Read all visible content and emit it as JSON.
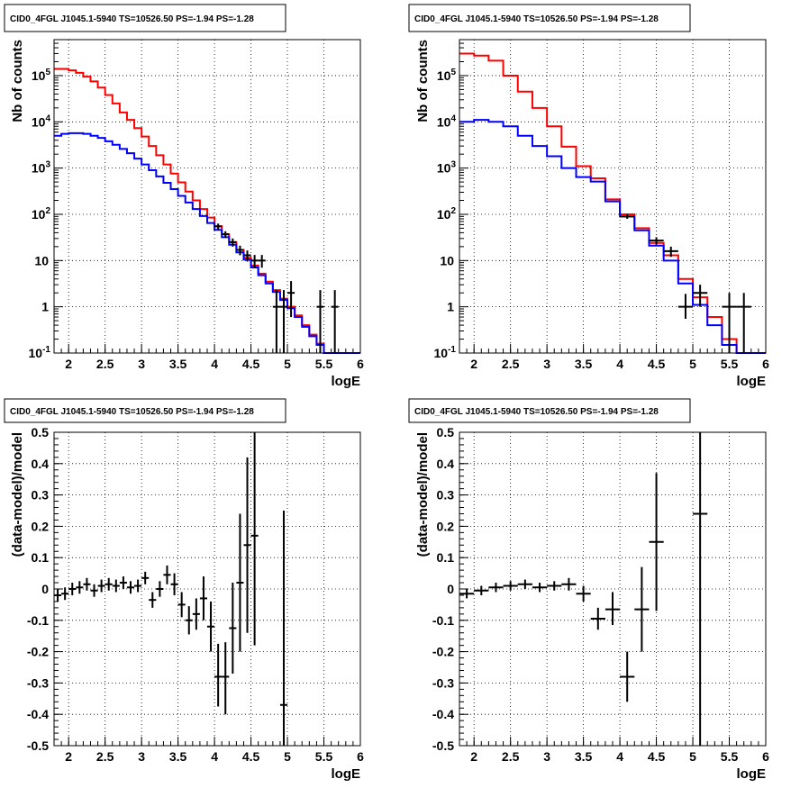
{
  "panel_title": "CID0_4FGL J1045.1-5940 TS=10526.50 PS=-1.94 PS=-1.28",
  "colors": {
    "model_total": "#ff0000",
    "model_other": "#0000ff",
    "data": "#000000"
  },
  "chart_data": [
    {
      "type": "line",
      "panel": "top-left",
      "title": "CID0_4FGL J1045.1-5940 TS=10526.50 PS=-1.94 PS=-1.28",
      "xlabel": "logE",
      "ylabel": "Nb of counts",
      "xlim": [
        1.8,
        6.0
      ],
      "ylim": [
        0.1,
        600000
      ],
      "yscale": "log",
      "grid": true,
      "x_ticks": [
        "2",
        "2.5",
        "3",
        "3.5",
        "4",
        "4.5",
        "5",
        "5.5",
        "6"
      ],
      "y_ticks": [
        "10^-1",
        "1",
        "10",
        "10^2",
        "10^3",
        "10^4",
        "10^5"
      ],
      "bin_width": 0.1,
      "bin_starts": [
        1.8,
        1.9,
        2.0,
        2.1,
        2.2,
        2.3,
        2.4,
        2.5,
        2.6,
        2.7,
        2.8,
        2.9,
        3.0,
        3.1,
        3.2,
        3.3,
        3.4,
        3.5,
        3.6,
        3.7,
        3.8,
        3.9,
        4.0,
        4.1,
        4.2,
        4.3,
        4.4,
        4.5,
        4.6,
        4.7,
        4.8,
        4.9,
        5.0,
        5.1,
        5.2,
        5.3,
        5.4,
        5.5,
        5.6,
        5.7,
        5.8,
        5.9
      ],
      "series": [
        {
          "name": "",
          "color": "#ff0000",
          "values": [
            140000,
            140000,
            130000,
            115000,
            95000,
            75000,
            55000,
            38000,
            25000,
            16000,
            11000,
            7300,
            4800,
            3000,
            1900,
            1200,
            760,
            490,
            310,
            200,
            130,
            85,
            55,
            37,
            25,
            17,
            11.5,
            7.8,
            5.2,
            3.5,
            2.3,
            1.5,
            1.0,
            0.65,
            0.4,
            0.25,
            0.16,
            0.1,
            0.1,
            0.1,
            0.1,
            0.1
          ]
        },
        {
          "name": "",
          "color": "#0000ff",
          "values": [
            5000,
            5500,
            5700,
            5700,
            5500,
            5000,
            4500,
            3800,
            3200,
            2600,
            2100,
            1600,
            1200,
            900,
            660,
            480,
            350,
            250,
            180,
            130,
            92,
            65,
            46,
            32,
            22,
            15,
            10.5,
            7.1,
            4.8,
            3.2,
            2.1,
            1.4,
            0.93,
            0.6,
            0.37,
            0.23,
            0.15,
            0.1,
            0.1,
            0.1,
            0.1,
            0.1
          ]
        }
      ],
      "points": [
        {
          "x": 4.05,
          "y": 55,
          "xerr": 0.05,
          "ylo": 47,
          "yhi": 63
        },
        {
          "x": 4.15,
          "y": 37,
          "xerr": 0.05,
          "ylo": 31,
          "yhi": 43
        },
        {
          "x": 4.25,
          "y": 25,
          "xerr": 0.05,
          "ylo": 20,
          "yhi": 30
        },
        {
          "x": 4.35,
          "y": 17,
          "xerr": 0.05,
          "ylo": 13,
          "yhi": 21
        },
        {
          "x": 4.45,
          "y": 13,
          "xerr": 0.05,
          "ylo": 9.5,
          "yhi": 16.5
        },
        {
          "x": 4.55,
          "y": 10,
          "xerr": 0.05,
          "ylo": 7,
          "yhi": 13.2
        },
        {
          "x": 4.65,
          "y": 10,
          "xerr": 0.05,
          "ylo": 7,
          "yhi": 13.2
        },
        {
          "x": 4.85,
          "y": 1,
          "xerr": 0.05,
          "ylo": 0.1,
          "yhi": 2.3
        },
        {
          "x": 4.95,
          "y": 1,
          "xerr": 0.05,
          "ylo": 0.1,
          "yhi": 2.3
        },
        {
          "x": 5.05,
          "y": 2,
          "xerr": 0.05,
          "ylo": 0.6,
          "yhi": 3.6
        },
        {
          "x": 5.45,
          "y": 1,
          "xerr": 0.05,
          "ylo": 0.1,
          "yhi": 2.3
        },
        {
          "x": 5.65,
          "y": 1,
          "xerr": 0.05,
          "ylo": 0.1,
          "yhi": 2.3
        }
      ]
    },
    {
      "type": "line",
      "panel": "top-right",
      "title": "CID0_4FGL J1045.1-5940 TS=10526.50 PS=-1.94 PS=-1.28",
      "xlabel": "logE",
      "ylabel": "Nb of counts",
      "xlim": [
        1.8,
        6.0
      ],
      "ylim": [
        0.1,
        600000
      ],
      "yscale": "log",
      "grid": true,
      "x_ticks": [
        "2",
        "2.5",
        "3",
        "3.5",
        "4",
        "4.5",
        "5",
        "5.5",
        "6"
      ],
      "y_ticks": [
        "10^-1",
        "1",
        "10",
        "10^2",
        "10^3",
        "10^4",
        "10^5"
      ],
      "bin_width": 0.2,
      "bin_starts": [
        1.8,
        2.0,
        2.2,
        2.4,
        2.6,
        2.8,
        3.0,
        3.2,
        3.4,
        3.6,
        3.8,
        4.0,
        4.2,
        4.4,
        4.6,
        4.8,
        5.0,
        5.2,
        5.4,
        5.6,
        5.8
      ],
      "series": [
        {
          "name": "",
          "color": "#ff0000",
          "values": [
            300000,
            270000,
            210000,
            100000,
            45000,
            20000,
            8000,
            2900,
            1100,
            600,
            210,
            100,
            50,
            24,
            13,
            4,
            1.6,
            0.6,
            0.2,
            0.1,
            0.1
          ]
        },
        {
          "name": "",
          "color": "#0000ff",
          "values": [
            10000,
            11000,
            10000,
            8000,
            5000,
            3000,
            1800,
            1000,
            640,
            510,
            190,
            90,
            45,
            21,
            10,
            3.2,
            1.1,
            0.4,
            0.15,
            0.1,
            0.1
          ]
        }
      ],
      "points": [
        {
          "x": 4.1,
          "y": 90,
          "xerr": 0.1,
          "ylo": 80,
          "yhi": 100
        },
        {
          "x": 4.5,
          "y": 27,
          "xerr": 0.1,
          "ylo": 22,
          "yhi": 32
        },
        {
          "x": 4.7,
          "y": 16,
          "xerr": 0.1,
          "ylo": 12,
          "yhi": 20
        },
        {
          "x": 4.9,
          "y": 1,
          "xerr": 0.1,
          "ylo": 0.55,
          "yhi": 1.9
        },
        {
          "x": 5.1,
          "y": 2,
          "xerr": 0.1,
          "ylo": 1.0,
          "yhi": 3.0
        },
        {
          "x": 5.5,
          "y": 1,
          "xerr": 0.1,
          "ylo": 0.1,
          "yhi": 2.0
        },
        {
          "x": 5.7,
          "y": 1,
          "xerr": 0.1,
          "ylo": 0.1,
          "yhi": 2.0
        }
      ]
    },
    {
      "type": "scatter",
      "panel": "bottom-left",
      "title": "CID0_4FGL J1045.1-5940 TS=10526.50 PS=-1.94 PS=-1.28",
      "xlabel": "logE",
      "ylabel": "(data-model)/model",
      "xlim": [
        1.8,
        6.0
      ],
      "ylim": [
        -0.5,
        0.5
      ],
      "grid": true,
      "x_ticks": [
        "2",
        "2.5",
        "3",
        "3.5",
        "4",
        "4.5",
        "5",
        "5.5",
        "6"
      ],
      "y_ticks": [
        "-0.5",
        "-0.4",
        "-0.3",
        "-0.2",
        "-0.1",
        "0",
        "0.1",
        "0.2",
        "0.3",
        "0.4",
        "0.5"
      ],
      "points": [
        {
          "x": 1.85,
          "y": -0.02,
          "xerr": 0.05,
          "ylo": -0.04,
          "yhi": 0.0
        },
        {
          "x": 1.95,
          "y": -0.015,
          "xerr": 0.05,
          "ylo": -0.035,
          "yhi": 0.005
        },
        {
          "x": 2.05,
          "y": 0.0,
          "xerr": 0.05,
          "ylo": -0.02,
          "yhi": 0.02
        },
        {
          "x": 2.15,
          "y": 0.005,
          "xerr": 0.05,
          "ylo": -0.015,
          "yhi": 0.025
        },
        {
          "x": 2.25,
          "y": 0.015,
          "xerr": 0.05,
          "ylo": -0.005,
          "yhi": 0.035
        },
        {
          "x": 2.35,
          "y": -0.005,
          "xerr": 0.05,
          "ylo": -0.025,
          "yhi": 0.015
        },
        {
          "x": 2.45,
          "y": 0.01,
          "xerr": 0.05,
          "ylo": -0.01,
          "yhi": 0.03
        },
        {
          "x": 2.55,
          "y": 0.015,
          "xerr": 0.05,
          "ylo": -0.005,
          "yhi": 0.035
        },
        {
          "x": 2.65,
          "y": 0.01,
          "xerr": 0.05,
          "ylo": -0.01,
          "yhi": 0.03
        },
        {
          "x": 2.75,
          "y": 0.02,
          "xerr": 0.05,
          "ylo": 0.0,
          "yhi": 0.04
        },
        {
          "x": 2.85,
          "y": 0.005,
          "xerr": 0.05,
          "ylo": -0.015,
          "yhi": 0.025
        },
        {
          "x": 2.95,
          "y": 0.01,
          "xerr": 0.05,
          "ylo": -0.01,
          "yhi": 0.03
        },
        {
          "x": 3.05,
          "y": 0.035,
          "xerr": 0.05,
          "ylo": 0.015,
          "yhi": 0.055
        },
        {
          "x": 3.15,
          "y": -0.035,
          "xerr": 0.05,
          "ylo": -0.06,
          "yhi": -0.01
        },
        {
          "x": 3.25,
          "y": 0.0,
          "xerr": 0.05,
          "ylo": -0.025,
          "yhi": 0.025
        },
        {
          "x": 3.35,
          "y": 0.045,
          "xerr": 0.05,
          "ylo": 0.015,
          "yhi": 0.075
        },
        {
          "x": 3.45,
          "y": 0.015,
          "xerr": 0.05,
          "ylo": -0.02,
          "yhi": 0.05
        },
        {
          "x": 3.55,
          "y": -0.05,
          "xerr": 0.05,
          "ylo": -0.09,
          "yhi": -0.01
        },
        {
          "x": 3.65,
          "y": -0.1,
          "xerr": 0.05,
          "ylo": -0.145,
          "yhi": -0.055
        },
        {
          "x": 3.75,
          "y": -0.08,
          "xerr": 0.05,
          "ylo": -0.13,
          "yhi": -0.03
        },
        {
          "x": 3.85,
          "y": -0.03,
          "xerr": 0.05,
          "ylo": -0.1,
          "yhi": 0.04
        },
        {
          "x": 3.95,
          "y": -0.12,
          "xerr": 0.05,
          "ylo": -0.2,
          "yhi": -0.04
        },
        {
          "x": 4.05,
          "y": -0.28,
          "xerr": 0.05,
          "ylo": -0.375,
          "yhi": -0.175
        },
        {
          "x": 4.15,
          "y": -0.28,
          "xerr": 0.05,
          "ylo": -0.4,
          "yhi": -0.17
        },
        {
          "x": 4.25,
          "y": -0.125,
          "xerr": 0.05,
          "ylo": -0.27,
          "yhi": 0.02
        },
        {
          "x": 4.35,
          "y": 0.02,
          "xerr": 0.05,
          "ylo": -0.2,
          "yhi": 0.24
        },
        {
          "x": 4.45,
          "y": 0.14,
          "xerr": 0.05,
          "ylo": -0.14,
          "yhi": 0.42
        },
        {
          "x": 4.55,
          "y": 0.17,
          "xerr": 0.05,
          "ylo": -0.18,
          "yhi": 0.5
        },
        {
          "x": 4.95,
          "y": -0.37,
          "xerr": 0.05,
          "ylo": -0.5,
          "yhi": 0.25
        }
      ]
    },
    {
      "type": "scatter",
      "panel": "bottom-right",
      "title": "CID0_4FGL J1045.1-5940 TS=10526.50 PS=-1.94 PS=-1.28",
      "xlabel": "logE",
      "ylabel": "(data-model)/model",
      "xlim": [
        1.8,
        6.0
      ],
      "ylim": [
        -0.5,
        0.5
      ],
      "grid": true,
      "x_ticks": [
        "2",
        "2.5",
        "3",
        "3.5",
        "4",
        "4.5",
        "5",
        "5.5",
        "6"
      ],
      "y_ticks": [
        "-0.5",
        "-0.4",
        "-0.3",
        "-0.2",
        "-0.1",
        "0",
        "0.1",
        "0.2",
        "0.3",
        "0.4",
        "0.5"
      ],
      "points": [
        {
          "x": 1.9,
          "y": -0.015,
          "xerr": 0.1,
          "ylo": -0.03,
          "yhi": 0.0
        },
        {
          "x": 2.1,
          "y": -0.005,
          "xerr": 0.1,
          "ylo": -0.02,
          "yhi": 0.01
        },
        {
          "x": 2.3,
          "y": 0.005,
          "xerr": 0.1,
          "ylo": -0.01,
          "yhi": 0.02
        },
        {
          "x": 2.5,
          "y": 0.01,
          "xerr": 0.1,
          "ylo": -0.005,
          "yhi": 0.025
        },
        {
          "x": 2.7,
          "y": 0.015,
          "xerr": 0.1,
          "ylo": 0.0,
          "yhi": 0.03
        },
        {
          "x": 2.9,
          "y": 0.005,
          "xerr": 0.1,
          "ylo": -0.01,
          "yhi": 0.02
        },
        {
          "x": 3.1,
          "y": 0.01,
          "xerr": 0.1,
          "ylo": -0.005,
          "yhi": 0.025
        },
        {
          "x": 3.3,
          "y": 0.015,
          "xerr": 0.1,
          "ylo": -0.005,
          "yhi": 0.035
        },
        {
          "x": 3.5,
          "y": -0.015,
          "xerr": 0.1,
          "ylo": -0.04,
          "yhi": 0.01
        },
        {
          "x": 3.7,
          "y": -0.095,
          "xerr": 0.1,
          "ylo": -0.13,
          "yhi": -0.06
        },
        {
          "x": 3.9,
          "y": -0.065,
          "xerr": 0.1,
          "ylo": -0.115,
          "yhi": -0.01
        },
        {
          "x": 4.1,
          "y": -0.28,
          "xerr": 0.1,
          "ylo": -0.36,
          "yhi": -0.2
        },
        {
          "x": 4.3,
          "y": -0.065,
          "xerr": 0.1,
          "ylo": -0.2,
          "yhi": 0.07
        },
        {
          "x": 4.5,
          "y": 0.15,
          "xerr": 0.1,
          "ylo": -0.07,
          "yhi": 0.37
        },
        {
          "x": 5.1,
          "y": 0.24,
          "xerr": 0.1,
          "ylo": -0.5,
          "yhi": 0.5
        }
      ]
    }
  ]
}
